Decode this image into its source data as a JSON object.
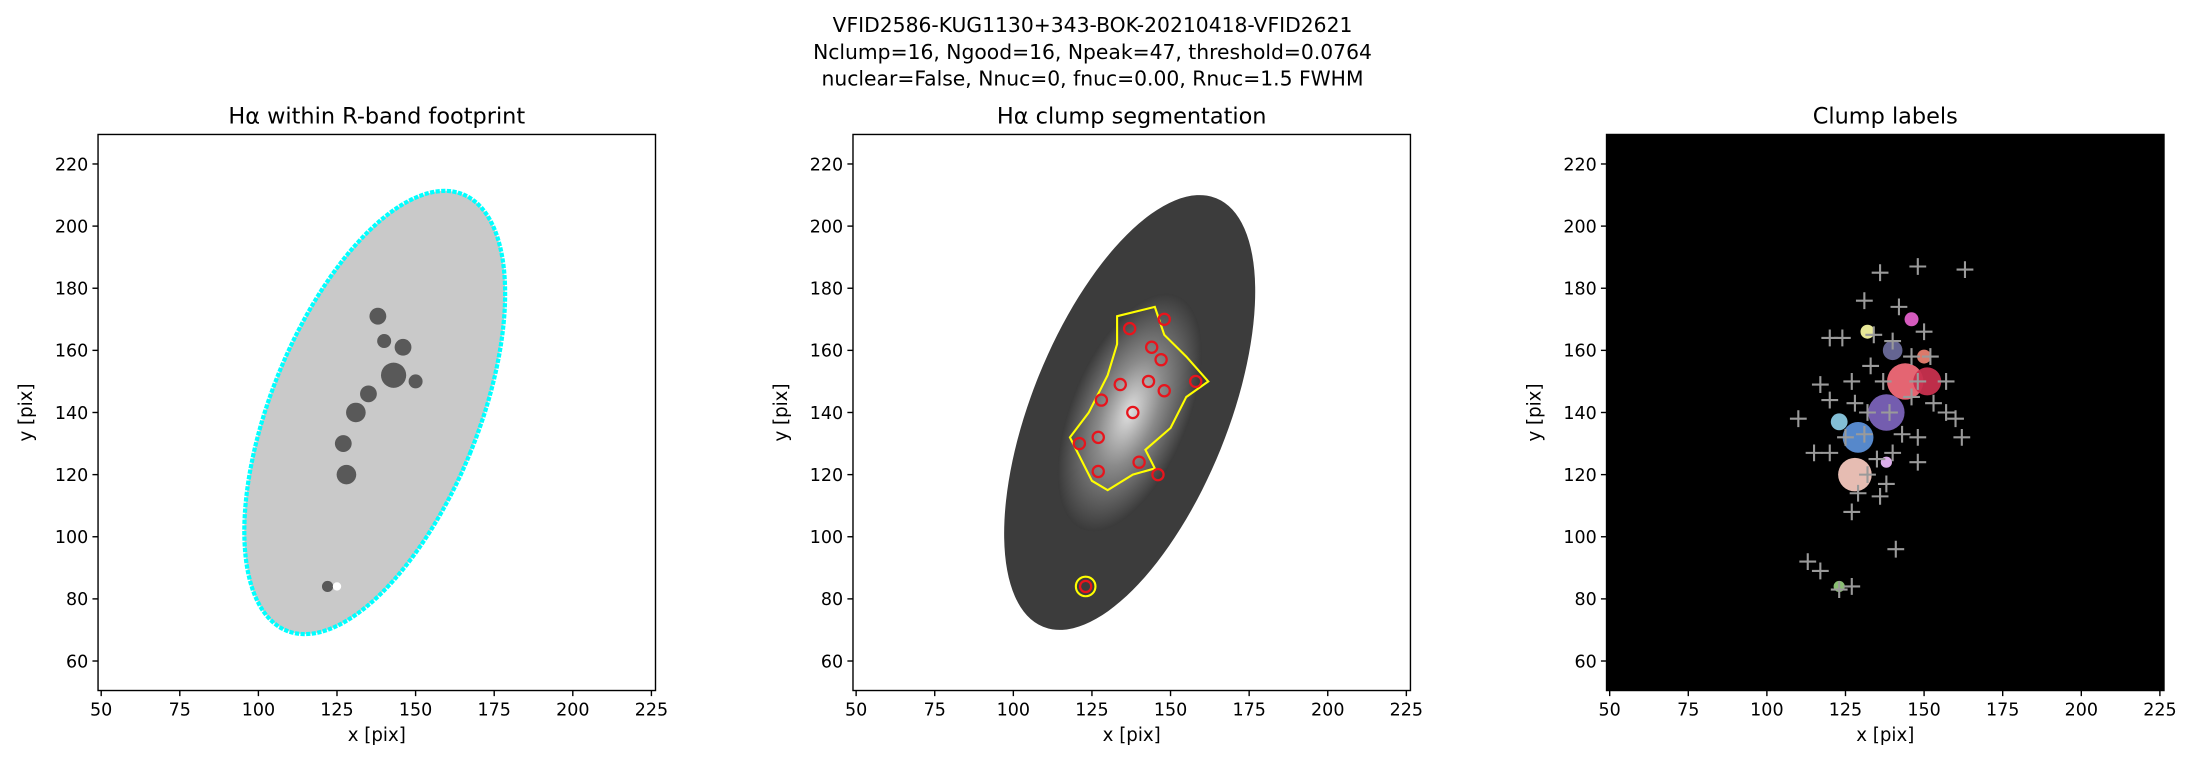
{
  "suptitle": [
    "VFID2586-KUG1130+343-BOK-20210418-VFID2621",
    "Nclump=16, Ngood=16, Npeak=47, threshold=0.0764",
    "nuclear=False, Nnuc=0, fnuc=0.00, Rnuc=1.5 FWHM"
  ],
  "chart_data": [
    {
      "type": "image",
      "title": "Hα within R-band footprint",
      "xlabel": "x [pix]",
      "ylabel": "y [pix]",
      "facecolor": "#ffffff",
      "xlim": [
        49,
        226.3
      ],
      "ylim": [
        50.5,
        229.5
      ],
      "xticks": [
        50,
        75,
        100,
        125,
        150,
        175,
        200,
        225
      ],
      "yticks": [
        60,
        80,
        100,
        120,
        140,
        160,
        180,
        200,
        220
      ]
    },
    {
      "type": "image",
      "title": "Hα clump segmentation",
      "xlabel": "x [pix]",
      "ylabel": "y [pix]",
      "facecolor": "#ffffff",
      "xlim": [
        49,
        226.3
      ],
      "ylim": [
        50.5,
        229.5
      ],
      "xticks": [
        50,
        75,
        100,
        125,
        150,
        175,
        200,
        225
      ],
      "yticks": [
        60,
        80,
        100,
        120,
        140,
        160,
        180,
        200,
        220
      ],
      "points": {
        "marker": "circle",
        "color": "#e8141c",
        "x": [
          137,
          148,
          144,
          147,
          143,
          158,
          148,
          134,
          128,
          138,
          121,
          127,
          140,
          146,
          127,
          123
        ],
        "y": [
          167,
          170,
          161,
          157,
          150,
          150,
          147,
          149,
          144,
          140,
          130,
          132,
          124,
          120,
          121,
          84
        ]
      }
    },
    {
      "type": "image",
      "title": "Clump labels",
      "xlabel": "x [pix]",
      "ylabel": "y [pix]",
      "facecolor": "#000000",
      "xlim": [
        49,
        226.3
      ],
      "ylim": [
        50.5,
        229.5
      ],
      "xticks": [
        50,
        75,
        100,
        125,
        150,
        175,
        200,
        225
      ],
      "yticks": [
        60,
        80,
        100,
        120,
        140,
        160,
        180,
        200,
        220
      ],
      "points": {
        "marker": "cross",
        "color": "#9a9a9a",
        "x": [
          136,
          148,
          163,
          131,
          142,
          120,
          124,
          134,
          140,
          150,
          146,
          152,
          133,
          127,
          117,
          137,
          148,
          157,
          120,
          128,
          139,
          153,
          110,
          160,
          125,
          148,
          162,
          115,
          120,
          131,
          140,
          148,
          132,
          129,
          136,
          138,
          127,
          141,
          113,
          117,
          123,
          127,
          157,
          143,
          135,
          146,
          132
        ],
        "y": [
          185,
          187,
          186,
          176,
          174,
          164,
          164,
          165,
          163,
          166,
          158,
          158,
          155,
          150,
          149,
          150,
          150,
          150,
          144,
          143,
          140,
          143,
          138,
          138,
          132,
          132,
          132,
          127,
          127,
          133,
          127,
          124,
          120,
          114,
          113,
          117,
          108,
          96,
          92,
          89,
          83,
          84,
          140,
          133,
          125,
          145,
          140
        ]
      }
    }
  ]
}
